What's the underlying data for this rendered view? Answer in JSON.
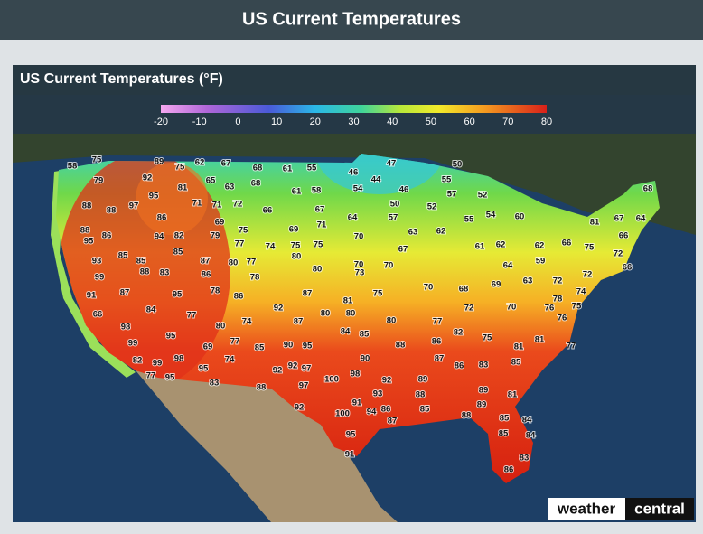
{
  "header": {
    "title": "US Current Temperatures"
  },
  "panel": {
    "title": "US Current Temperatures (°F)"
  },
  "legend": {
    "ticks": [
      -20,
      -10,
      0,
      10,
      20,
      30,
      40,
      50,
      60,
      70,
      80
    ]
  },
  "map": {
    "temperatures": [
      58,
      75,
      89,
      75,
      62,
      67,
      68,
      61,
      55,
      46,
      47,
      50,
      79,
      92,
      65,
      63,
      68,
      44,
      55,
      81,
      54,
      61,
      58,
      46,
      57,
      52,
      68,
      95,
      97,
      71,
      71,
      72,
      66,
      67,
      50,
      52,
      55,
      54,
      60,
      81,
      67,
      64,
      88,
      88,
      86,
      69,
      71,
      64,
      57,
      88,
      86,
      94,
      82,
      79,
      75,
      69,
      63,
      62,
      66,
      66,
      95,
      77,
      74,
      75,
      75,
      70,
      67,
      61,
      62,
      62,
      75,
      72,
      85,
      85,
      70,
      59,
      64,
      66,
      93,
      85,
      87,
      80,
      77,
      80,
      70,
      99,
      88,
      83,
      86,
      78,
      80,
      73,
      69,
      63,
      72,
      72,
      91,
      87,
      95,
      78,
      86,
      87,
      81,
      75,
      70,
      68,
      78,
      74,
      75,
      66,
      84,
      77,
      92,
      80,
      80,
      76,
      72,
      70,
      98,
      80,
      74,
      87,
      80,
      77,
      76,
      95,
      99,
      77,
      90,
      95,
      84,
      85,
      82,
      75,
      81,
      77,
      69,
      85,
      88,
      86,
      81,
      82,
      99,
      98,
      74,
      92,
      90,
      87,
      86,
      83,
      85,
      95,
      92,
      97,
      77,
      95,
      100,
      98,
      92,
      89,
      83,
      88,
      97,
      88,
      89,
      81,
      93,
      85,
      89,
      86,
      91,
      92,
      100,
      94,
      87,
      88,
      85,
      84,
      95,
      85,
      84,
      91,
      83,
      86
    ]
  },
  "logo": {
    "left": "weather",
    "right": "central"
  }
}
